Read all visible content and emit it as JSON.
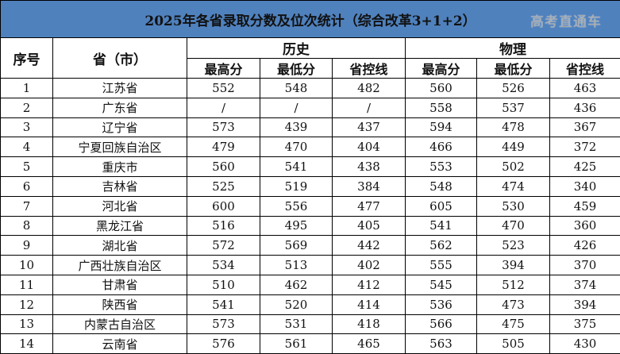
{
  "title": "2025年各省录取分数及位次统计（综合改革3+1+2）",
  "colors": {
    "title_bg": "#4f81bd",
    "border": "#000000"
  },
  "headers": {
    "index": "序号",
    "province": "省（市）",
    "history": "历史",
    "physics": "物理",
    "sub": [
      "最高分",
      "最低分",
      "省控线",
      "最高分",
      "最低分",
      "省控线"
    ]
  },
  "rows": [
    {
      "no": "1",
      "province": "江苏省",
      "values": [
        "552",
        "548",
        "482",
        "560",
        "526",
        "463"
      ]
    },
    {
      "no": "2",
      "province": "广东省",
      "values": [
        "/",
        "/",
        "/",
        "558",
        "537",
        "436"
      ]
    },
    {
      "no": "3",
      "province": "辽宁省",
      "values": [
        "573",
        "439",
        "437",
        "594",
        "478",
        "367"
      ]
    },
    {
      "no": "4",
      "province": "宁夏回族自治区",
      "values": [
        "479",
        "470",
        "404",
        "466",
        "449",
        "372"
      ]
    },
    {
      "no": "5",
      "province": "重庆市",
      "values": [
        "560",
        "541",
        "438",
        "553",
        "502",
        "425"
      ]
    },
    {
      "no": "6",
      "province": "吉林省",
      "values": [
        "525",
        "519",
        "384",
        "548",
        "474",
        "340"
      ]
    },
    {
      "no": "7",
      "province": "河北省",
      "values": [
        "600",
        "556",
        "477",
        "605",
        "530",
        "459"
      ]
    },
    {
      "no": "8",
      "province": "黑龙江省",
      "values": [
        "516",
        "495",
        "405",
        "541",
        "470",
        "360"
      ]
    },
    {
      "no": "9",
      "province": "湖北省",
      "values": [
        "572",
        "569",
        "442",
        "562",
        "523",
        "426"
      ]
    },
    {
      "no": "10",
      "province": "广西壮族自治区",
      "values": [
        "534",
        "513",
        "402",
        "555",
        "394",
        "370"
      ]
    },
    {
      "no": "11",
      "province": "甘肃省",
      "values": [
        "510",
        "462",
        "412",
        "545",
        "512",
        "374"
      ]
    },
    {
      "no": "12",
      "province": "陕西省",
      "values": [
        "541",
        "520",
        "414",
        "536",
        "473",
        "394"
      ]
    },
    {
      "no": "13",
      "province": "内蒙古自治区",
      "values": [
        "573",
        "531",
        "418",
        "566",
        "475",
        "375"
      ]
    },
    {
      "no": "14",
      "province": "云南省",
      "values": [
        "576",
        "561",
        "465",
        "563",
        "505",
        "430"
      ]
    }
  ],
  "watermark": "高考直通车"
}
